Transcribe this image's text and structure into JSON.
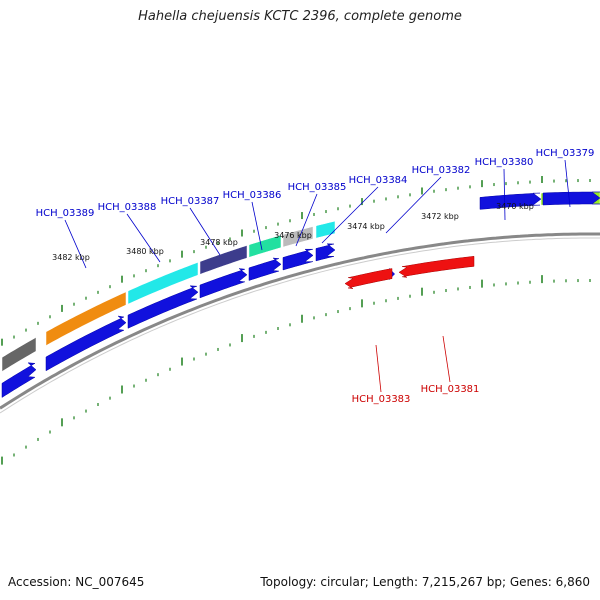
{
  "title": "Hahella chejuensis KCTC 2396, complete genome",
  "footer": {
    "accession": "Accession: NC_007645",
    "topology": "Topology: circular; Length: 7,215,267 bp; Genes: 6,860"
  },
  "scale_labels": [
    "3482 kbp",
    "3480 kbp",
    "3478 kbp",
    "3476 kbp",
    "3474 kbp",
    "3472 kbp",
    "3470 kbp"
  ],
  "forward_genes": [
    "HCH_03389",
    "HCH_03388",
    "HCH_03387",
    "HCH_03386",
    "HCH_03385",
    "HCH_03384",
    "HCH_03382",
    "HCH_03380",
    "HCH_03379"
  ],
  "reverse_genes": [
    "HCH_03383",
    "HCH_03381"
  ],
  "colors": {
    "forward_label": "#0000cc",
    "reverse_label": "#cc0000",
    "forward_arrow": "#1111dd",
    "reverse_arrow": "#ee1111",
    "tick": "#1a7f1a",
    "backbone": "#888888",
    "cog_blocks": [
      "#666666",
      "#f08c10",
      "#22e8e8",
      "#3c3c8c",
      "#22e0a0",
      "#bbbbbb",
      "#22e8e8",
      "#99ee22"
    ]
  }
}
